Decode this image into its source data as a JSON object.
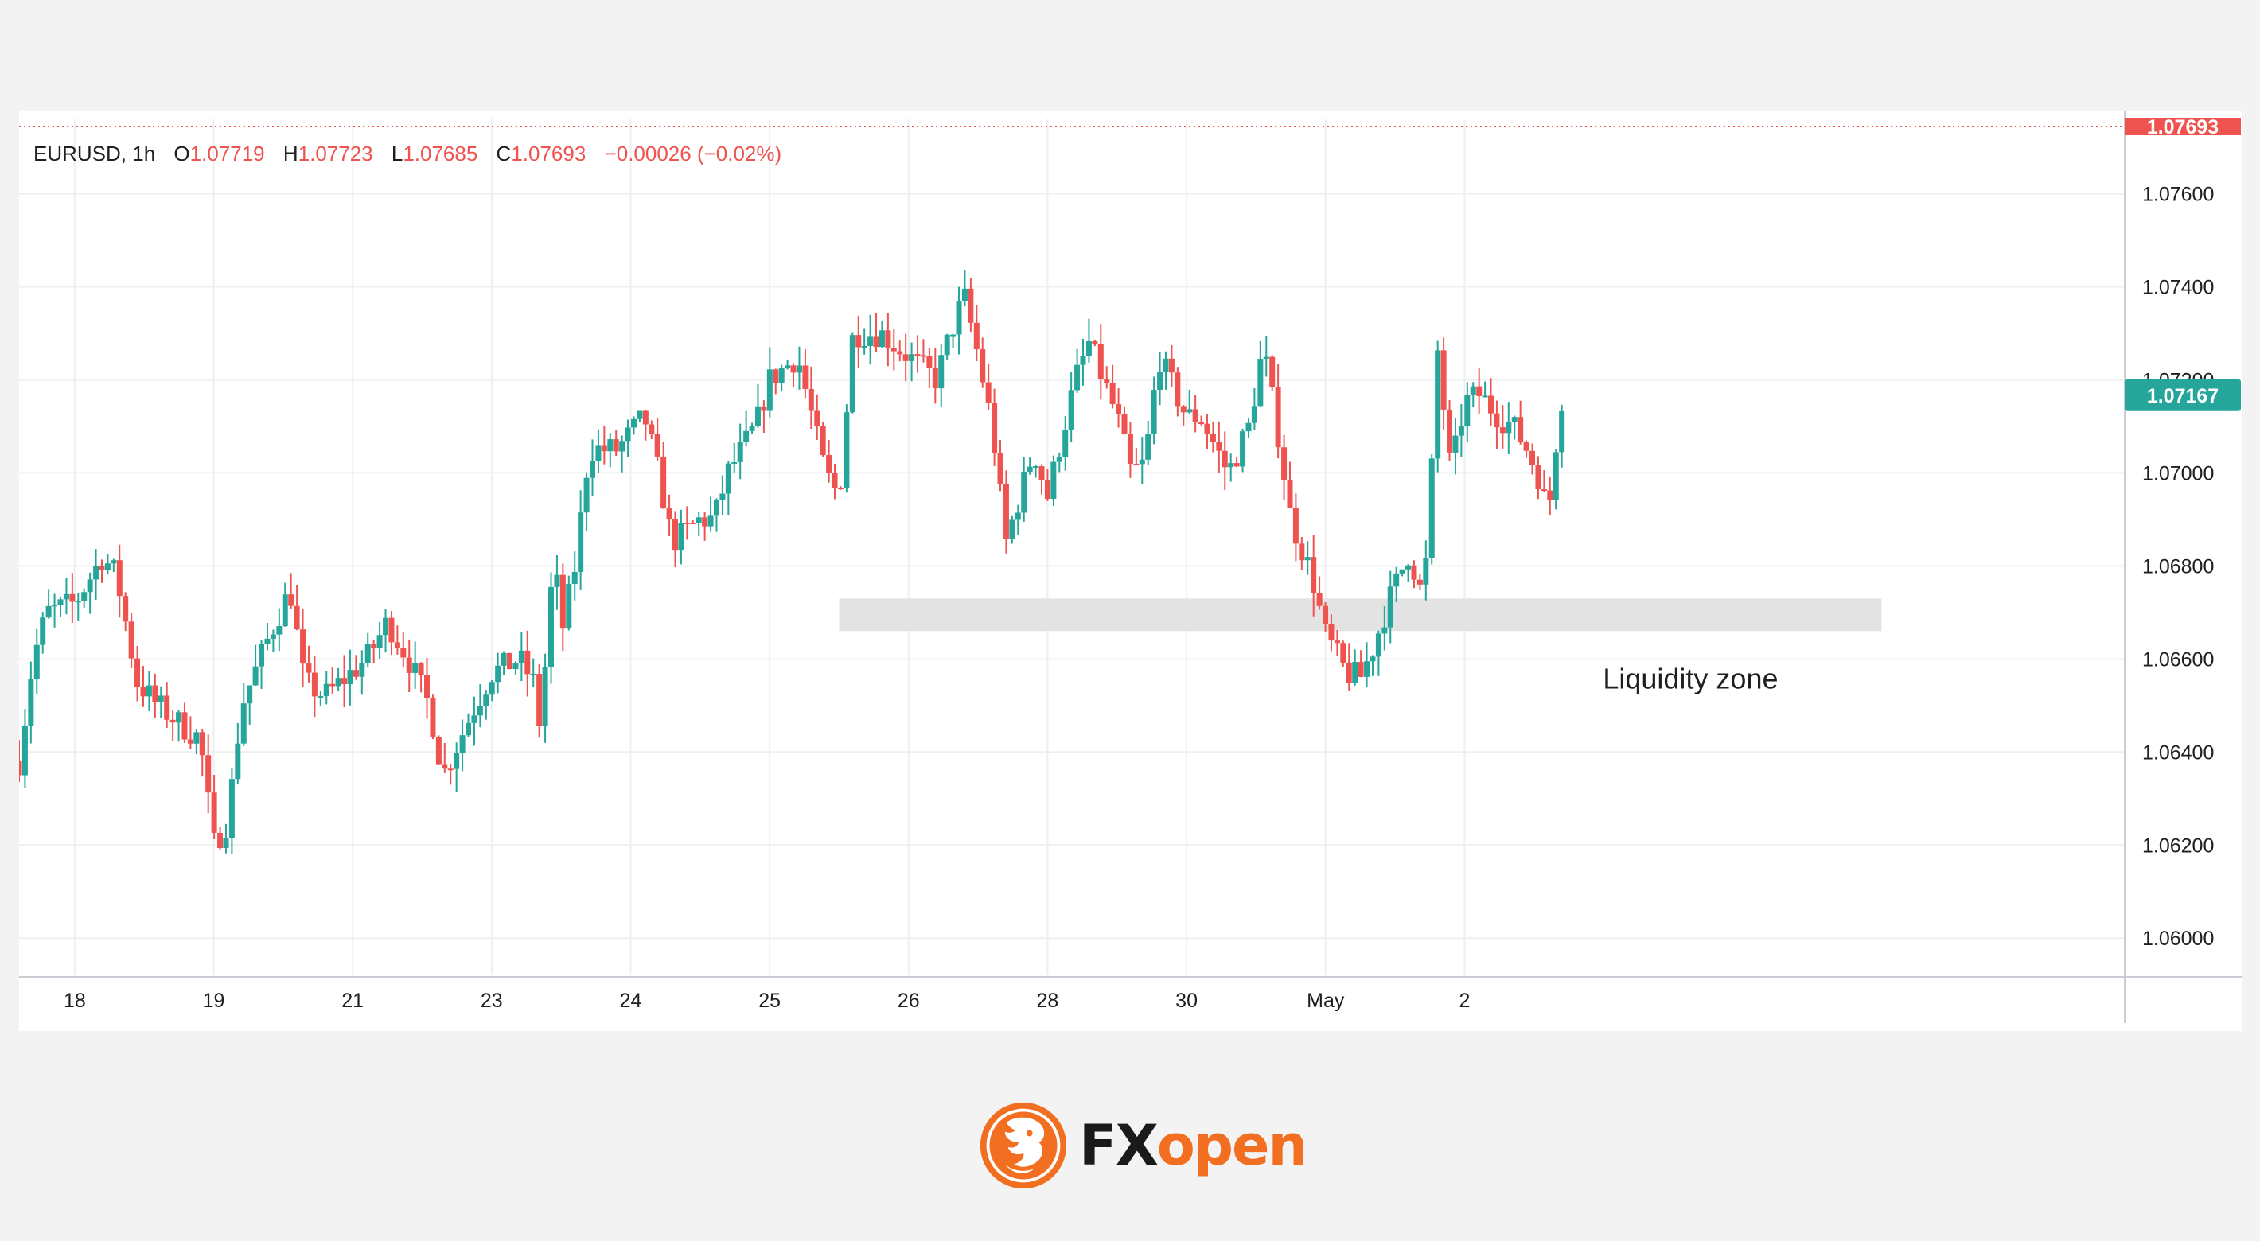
{
  "colors": {
    "up": "#26a69a",
    "down": "#ef5350",
    "grid": "#eeeff2",
    "zone": "#e3e3e3",
    "accent_orange": "#f26f21",
    "brand_dark": "#1a1a1a"
  },
  "legend": {
    "symbol": "EURUSD",
    "interval": "1h",
    "o_label": "O",
    "o_value": "1.07719",
    "h_label": "H",
    "h_value": "1.07723",
    "l_label": "L",
    "l_value": "1.07685",
    "c_label": "C",
    "c_value": "1.07693",
    "change": "−0.00026 (−0.02%)"
  },
  "price_tags": {
    "top": "1.07693",
    "current": "1.07167"
  },
  "annotation": {
    "label": "Liquidity zone",
    "zone_low": 1.0666,
    "zone_high": 1.0673,
    "zone_x_start": 23.5,
    "zone_x_end": 31.0
  },
  "brand": {
    "name": "FXopen",
    "logo_icon": "lion-emblem-icon"
  },
  "chart_data": {
    "type": "candlestick",
    "title": "",
    "symbol": "EURUSD",
    "interval": "1h",
    "xlabel": "",
    "ylabel": "",
    "grid": true,
    "ylim": [
      1.0592,
      1.0776
    ],
    "xlim": [
      17.6,
      32.75
    ],
    "y_ticks": [
      "1.06000",
      "1.06200",
      "1.06400",
      "1.06600",
      "1.06800",
      "1.07000",
      "1.07200",
      "1.07400",
      "1.07600"
    ],
    "x_ticks": [
      {
        "x": 18,
        "label": "18"
      },
      {
        "x": 19,
        "label": "19"
      },
      {
        "x": 20,
        "label": "21"
      },
      {
        "x": 21,
        "label": "23"
      },
      {
        "x": 22,
        "label": "24"
      },
      {
        "x": 23,
        "label": "25"
      },
      {
        "x": 24,
        "label": "26"
      },
      {
        "x": 25,
        "label": "28"
      },
      {
        "x": 26,
        "label": "30"
      },
      {
        "x": 27,
        "label": "May"
      },
      {
        "x": 28,
        "label": "2"
      }
    ],
    "close_path": [
      [
        17.6,
        1.0638
      ],
      [
        17.7,
        1.066
      ],
      [
        17.8,
        1.067
      ],
      [
        18.0,
        1.0672
      ],
      [
        18.1,
        1.0677
      ],
      [
        18.2,
        1.0682
      ],
      [
        18.3,
        1.0678
      ],
      [
        18.45,
        1.0655
      ],
      [
        18.6,
        1.065
      ],
      [
        18.8,
        1.0645
      ],
      [
        18.9,
        1.0643
      ],
      [
        19.0,
        1.062
      ],
      [
        19.1,
        1.0625
      ],
      [
        19.2,
        1.065
      ],
      [
        19.4,
        1.0665
      ],
      [
        19.55,
        1.0675
      ],
      [
        19.65,
        1.0655
      ],
      [
        19.8,
        1.0652
      ],
      [
        20.1,
        1.066
      ],
      [
        20.25,
        1.0668
      ],
      [
        20.4,
        1.066
      ],
      [
        20.55,
        1.065
      ],
      [
        20.65,
        1.0635
      ],
      [
        20.85,
        1.0648
      ],
      [
        21.0,
        1.0657
      ],
      [
        21.2,
        1.066
      ],
      [
        21.3,
        1.0655
      ],
      [
        21.35,
        1.0645
      ],
      [
        21.45,
        1.0683
      ],
      [
        21.5,
        1.0665
      ],
      [
        21.6,
        1.068
      ],
      [
        21.7,
        1.0705
      ],
      [
        21.9,
        1.0705
      ],
      [
        22.1,
        1.0712
      ],
      [
        22.2,
        1.07
      ],
      [
        22.3,
        1.0685
      ],
      [
        22.5,
        1.069
      ],
      [
        22.6,
        1.069
      ],
      [
        22.7,
        1.07
      ],
      [
        22.9,
        1.071
      ],
      [
        23.0,
        1.072
      ],
      [
        23.2,
        1.0725
      ],
      [
        23.4,
        1.07
      ],
      [
        23.5,
        1.0695
      ],
      [
        23.6,
        1.073
      ],
      [
        23.8,
        1.073
      ],
      [
        24.0,
        1.0725
      ],
      [
        24.2,
        1.072
      ],
      [
        24.3,
        1.073
      ],
      [
        24.4,
        1.0738
      ],
      [
        24.5,
        1.0725
      ],
      [
        24.6,
        1.071
      ],
      [
        24.7,
        1.0685
      ],
      [
        24.8,
        1.0695
      ],
      [
        24.9,
        1.0705
      ],
      [
        25.0,
        1.0695
      ],
      [
        25.2,
        1.072
      ],
      [
        25.3,
        1.0728
      ],
      [
        25.5,
        1.0712
      ],
      [
        25.6,
        1.07
      ],
      [
        25.7,
        1.0702
      ],
      [
        25.8,
        1.0725
      ],
      [
        26.0,
        1.0712
      ],
      [
        26.1,
        1.0712
      ],
      [
        26.3,
        1.07
      ],
      [
        26.45,
        1.071
      ],
      [
        26.55,
        1.0727
      ],
      [
        26.65,
        1.071
      ],
      [
        26.75,
        1.069
      ],
      [
        26.9,
        1.0678
      ],
      [
        27.0,
        1.0665
      ],
      [
        27.15,
        1.0657
      ],
      [
        27.25,
        1.0656
      ],
      [
        27.35,
        1.0663
      ],
      [
        27.45,
        1.0672
      ],
      [
        27.6,
        1.0683
      ],
      [
        27.7,
        1.0673
      ],
      [
        27.75,
        1.069
      ],
      [
        27.8,
        1.0728
      ],
      [
        27.9,
        1.07
      ],
      [
        28.0,
        1.0715
      ],
      [
        28.1,
        1.0717
      ],
      [
        28.25,
        1.0712
      ],
      [
        28.35,
        1.071
      ],
      [
        28.45,
        1.0705
      ],
      [
        28.55,
        1.0698
      ],
      [
        28.6,
        1.069
      ],
      [
        28.65,
        1.0705
      ],
      [
        28.7,
        1.0716
      ]
    ]
  }
}
